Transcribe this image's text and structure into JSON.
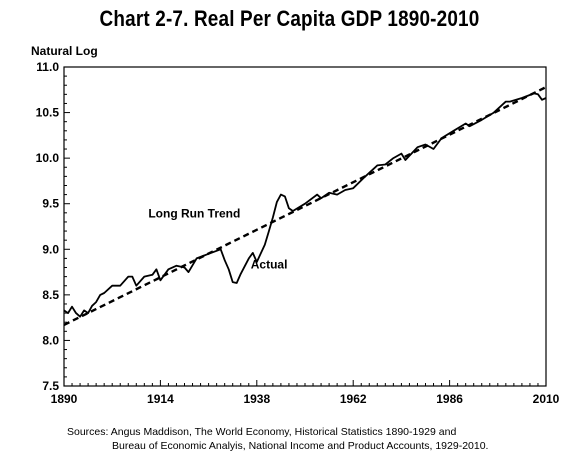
{
  "chart_data": {
    "type": "line",
    "title": "Chart 2-7.  Real Per Capita GDP 1890-2010",
    "ylabel": "Natural Log",
    "xlabel": "",
    "xlim": [
      1890,
      2010
    ],
    "ylim": [
      7.5,
      11.0
    ],
    "x_ticks": [
      1890,
      1914,
      1938,
      1962,
      1986,
      2010
    ],
    "y_ticks": [
      "7.5",
      "8.0",
      "8.5",
      "9.0",
      "9.5",
      "10.0",
      "10.5",
      "11.0"
    ],
    "grid": false,
    "series": [
      {
        "name": "Actual",
        "style": "solid",
        "x": [
          1890,
          1891,
          1892,
          1893,
          1894,
          1895,
          1896,
          1897,
          1898,
          1899,
          1900,
          1902,
          1904,
          1906,
          1907,
          1908,
          1910,
          1912,
          1913,
          1914,
          1916,
          1918,
          1920,
          1921,
          1923,
          1926,
          1929,
          1930,
          1931,
          1932,
          1933,
          1934,
          1936,
          1937,
          1938,
          1940,
          1941,
          1942,
          1943,
          1944,
          1945,
          1946,
          1947,
          1950,
          1953,
          1954,
          1956,
          1958,
          1960,
          1962,
          1965,
          1968,
          1970,
          1972,
          1974,
          1975,
          1978,
          1980,
          1982,
          1984,
          1987,
          1990,
          1991,
          1994,
          1997,
          2000,
          2001,
          2004,
          2007,
          2008,
          2009,
          2010
        ],
        "y": [
          8.33,
          8.3,
          8.37,
          8.3,
          8.26,
          8.33,
          8.3,
          8.38,
          8.42,
          8.5,
          8.52,
          8.6,
          8.6,
          8.7,
          8.7,
          8.6,
          8.7,
          8.72,
          8.78,
          8.66,
          8.78,
          8.82,
          8.8,
          8.75,
          8.9,
          8.95,
          9.0,
          8.88,
          8.78,
          8.64,
          8.63,
          8.73,
          8.9,
          8.96,
          8.86,
          9.05,
          9.2,
          9.35,
          9.52,
          9.6,
          9.58,
          9.45,
          9.42,
          9.5,
          9.6,
          9.56,
          9.62,
          9.6,
          9.65,
          9.67,
          9.8,
          9.92,
          9.93,
          10.0,
          10.05,
          9.98,
          10.12,
          10.15,
          10.1,
          10.22,
          10.3,
          10.38,
          10.35,
          10.42,
          10.5,
          10.62,
          10.62,
          10.66,
          10.71,
          10.7,
          10.64,
          10.66
        ]
      },
      {
        "name": "Long Run Trend",
        "style": "dashed",
        "x": [
          1890,
          2010
        ],
        "y": [
          8.17,
          10.78
        ]
      }
    ],
    "annotations": [
      {
        "text": "Long Run Trend",
        "x": 1911,
        "y": 9.35
      },
      {
        "text": "Actual",
        "x": 1936.5,
        "y": 8.79
      }
    ]
  },
  "sources": {
    "line1": "Sources: Angus Maddison, The World Economy, Historical Statistics 1890-1929 and",
    "line2": "Bureau of Economic Analyis, National Income and Product Accounts, 1929-2010."
  }
}
